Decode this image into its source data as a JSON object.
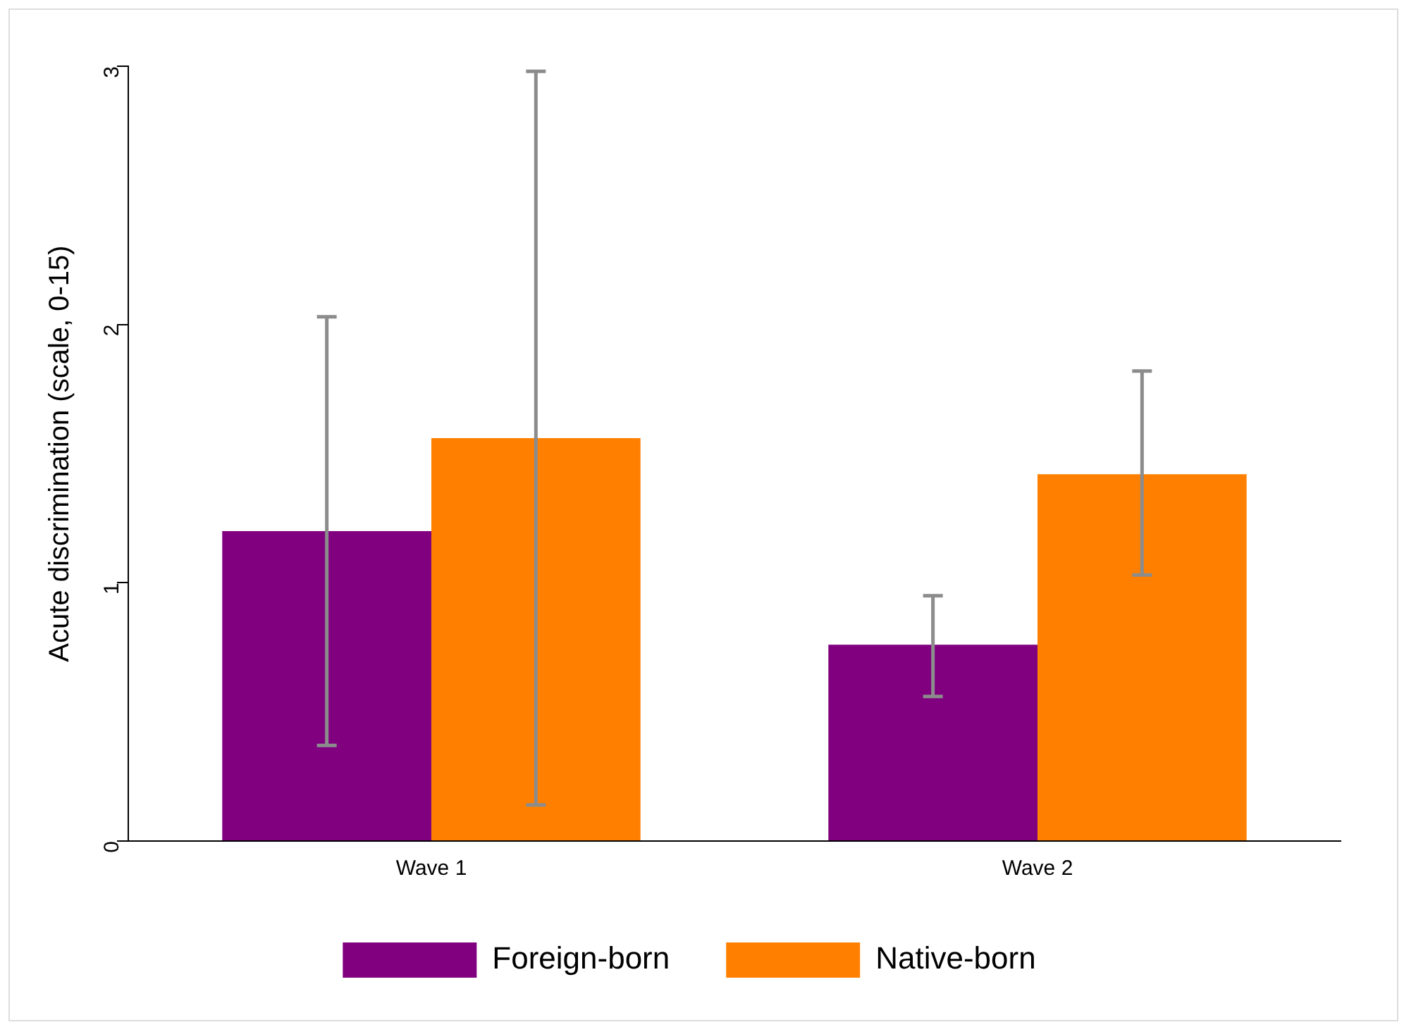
{
  "chart_data": {
    "type": "bar",
    "ylabel": "Acute discrimination (scale, 0-15)",
    "categories": [
      "Wave 1",
      "Wave 2"
    ],
    "series": [
      {
        "name": "Foreign-born",
        "color": "#800080",
        "values": [
          1.2,
          0.76
        ],
        "errors": [
          [
            0.37,
            2.03
          ],
          [
            0.56,
            0.95
          ]
        ]
      },
      {
        "name": "Native-born",
        "color": "#ff8000",
        "values": [
          1.56,
          1.42
        ],
        "errors": [
          [
            0.14,
            2.98
          ],
          [
            1.03,
            1.82
          ]
        ]
      }
    ],
    "ylim": [
      0,
      3
    ],
    "yticks": [
      0,
      1,
      2,
      3
    ],
    "grid": false,
    "legend": "bottom"
  }
}
